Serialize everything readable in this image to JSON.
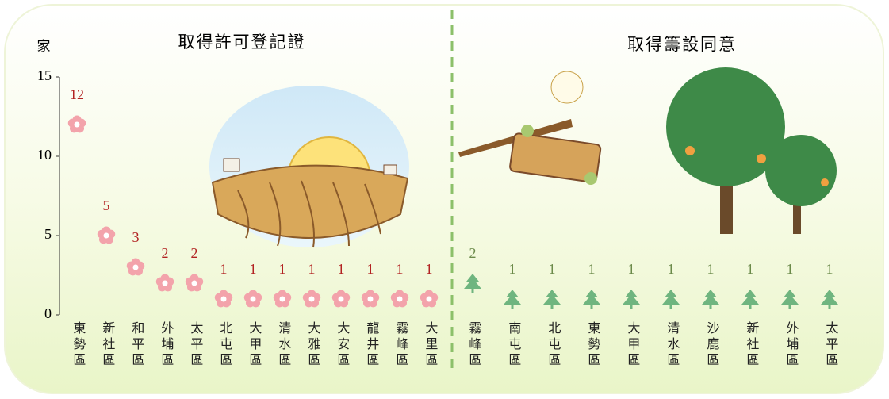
{
  "chart_data": [
    {
      "type": "dot",
      "marker": "flower",
      "title": "取得許可登記證",
      "y_label": "家",
      "categories": [
        "東勢區",
        "新社區",
        "和平區",
        "外埔區",
        "太平區",
        "北屯區",
        "大甲區",
        "清水區",
        "大雅區",
        "大安區",
        "龍井區",
        "霧峰區",
        "大里區"
      ],
      "values": [
        12,
        5,
        3,
        2,
        2,
        1,
        1,
        1,
        1,
        1,
        1,
        1,
        1
      ],
      "color": "#f3a3ab",
      "label_color": "#b22222",
      "ylim": [
        0,
        15
      ],
      "yticks": [
        0,
        5,
        10,
        15
      ]
    },
    {
      "type": "dot",
      "marker": "tree",
      "title": "取得籌設同意",
      "categories": [
        "霧峰區",
        "南屯區",
        "北屯區",
        "東勢區",
        "大甲區",
        "清水區",
        "沙鹿區",
        "新社區",
        "外埔區",
        "太平區"
      ],
      "values": [
        2,
        1,
        1,
        1,
        1,
        1,
        1,
        1,
        1,
        1
      ],
      "color": "#6fb57f",
      "label_color": "#6b8a4a",
      "ylim": [
        0,
        15
      ]
    }
  ]
}
